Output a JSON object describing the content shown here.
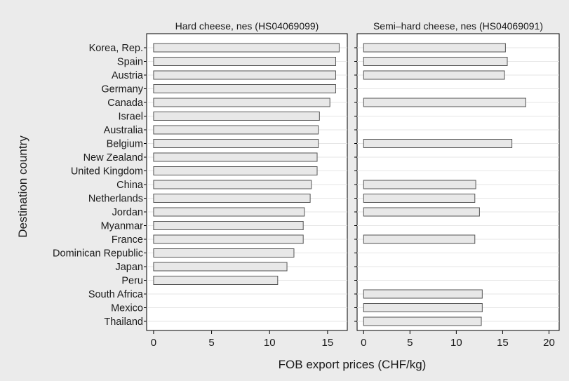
{
  "chart_data": {
    "type": "bar",
    "orientation": "horizontal",
    "ylabel": "Destination country",
    "xlabel": "FOB export prices (CHF/kg)",
    "categories": [
      "Korea, Rep.",
      "Spain",
      "Austria",
      "Germany",
      "Canada",
      "Israel",
      "Australia",
      "Belgium",
      "New Zealand",
      "United Kingdom",
      "China",
      "Netherlands",
      "Jordan",
      "Myanmar",
      "France",
      "Dominican Republic",
      "Japan",
      "Peru",
      "South Africa",
      "Mexico",
      "Thailand"
    ],
    "panels": [
      {
        "title": "Hard cheese, nes (HS04069099)",
        "xlim": [
          -0.6,
          16.7
        ],
        "ticks": [
          0,
          5,
          10,
          15
        ],
        "values": [
          16.0,
          15.7,
          15.7,
          15.7,
          15.2,
          14.3,
          14.2,
          14.2,
          14.1,
          14.1,
          13.6,
          13.5,
          13.0,
          12.9,
          12.9,
          12.1,
          11.5,
          10.7,
          null,
          null,
          null
        ]
      },
      {
        "title": "Semi–hard cheese, nes (HS04069091)",
        "xlim": [
          -0.7,
          21.1
        ],
        "ticks": [
          0,
          5,
          10,
          15,
          20
        ],
        "values": [
          15.3,
          15.5,
          15.2,
          null,
          17.5,
          null,
          null,
          16.0,
          null,
          null,
          12.1,
          12.0,
          12.5,
          null,
          12.0,
          null,
          null,
          null,
          12.8,
          12.8,
          12.7
        ]
      }
    ],
    "grid": true,
    "bar_color": "#e8e8e8",
    "bar_stroke": "#555555",
    "background": "#ebebeb",
    "plot_background": "#ffffff"
  }
}
